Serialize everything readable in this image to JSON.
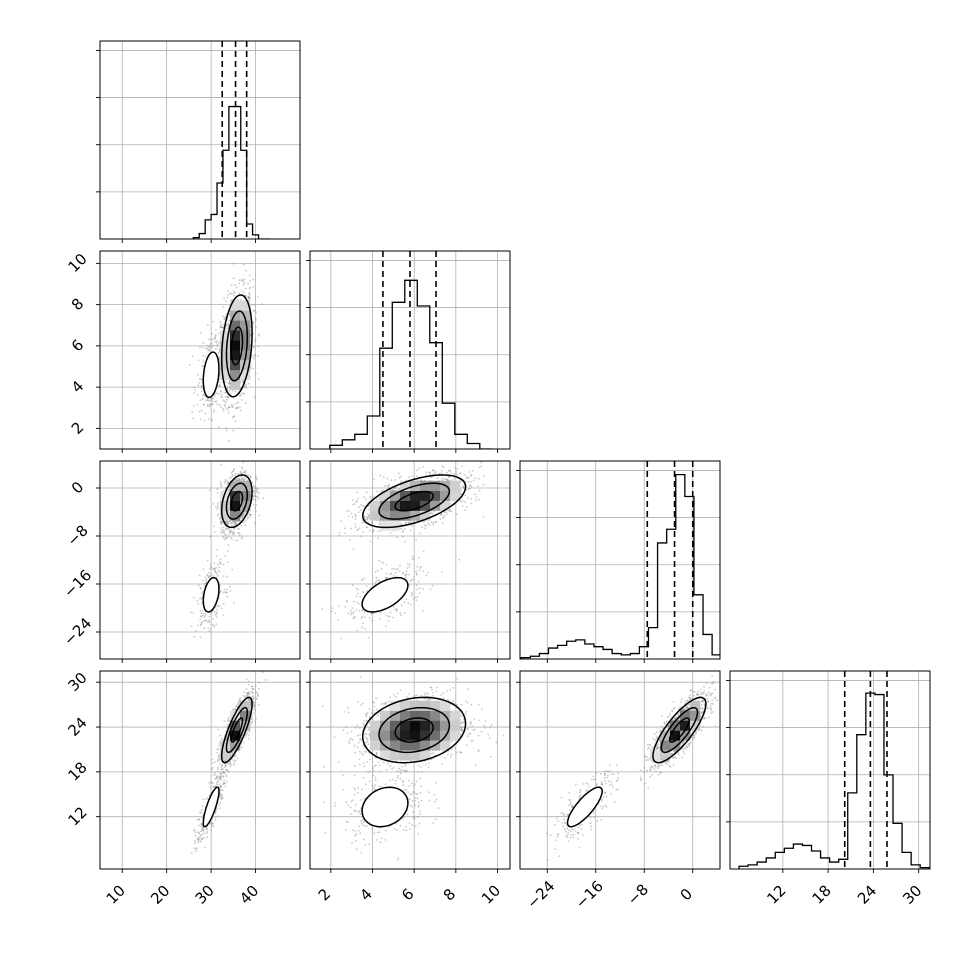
{
  "chart_data": {
    "type": "corner",
    "title": "",
    "parameters": [
      {
        "name": "",
        "xlim": [
          5,
          50
        ],
        "ticks": [
          10,
          20,
          30,
          40
        ],
        "tick_labels": [
          "10",
          "20",
          "30",
          "40"
        ],
        "quantiles": [
          32.5,
          35.5,
          38.0
        ],
        "histogram": {
          "bin_edges": [
            26,
            27.33,
            28.67,
            30,
            31.33,
            32.67,
            34,
            35.33,
            36.67,
            38,
            39.33,
            40.67,
            42,
            43.33
          ],
          "counts": [
            1,
            4,
            14,
            18,
            41,
            65,
            97,
            97,
            65,
            11,
            3,
            0,
            0
          ]
        }
      },
      {
        "name": "",
        "xlim": [
          1,
          10.6
        ],
        "ticks": [
          2,
          4,
          6,
          8,
          10
        ],
        "tick_labels": [
          "2",
          "4",
          "6",
          "8",
          "10"
        ],
        "quantiles": [
          4.5,
          5.8,
          7.05
        ],
        "histogram": {
          "bin_edges": [
            1.95,
            2.55,
            3.15,
            3.75,
            4.35,
            4.95,
            5.55,
            6.15,
            6.75,
            7.35,
            7.95,
            8.55,
            9.15,
            9.75
          ],
          "counts": [
            2,
            5,
            8,
            18,
            55,
            80,
            92,
            78,
            58,
            25,
            8,
            3,
            0
          ]
        }
      },
      {
        "name": "",
        "xlim": [
          -28.5,
          4.5
        ],
        "ticks": [
          -24,
          -16,
          -8,
          0
        ],
        "tick_labels": [
          "−24",
          "−16",
          "−8",
          "0"
        ],
        "quantiles": [
          -7.5,
          -3.0,
          0.0
        ],
        "histogram": {
          "bin_edges": [
            -28.3,
            -26.8,
            -25.3,
            -23.8,
            -22.3,
            -20.8,
            -19.3,
            -17.8,
            -16.3,
            -14.8,
            -13.3,
            -11.8,
            -10.3,
            -8.8,
            -7.3,
            -5.8,
            -4.3,
            -2.8,
            -1.3,
            0.2,
            1.7,
            3.2,
            4.7
          ],
          "counts": [
            1,
            2,
            4,
            8,
            10,
            13,
            14,
            11,
            9,
            7,
            4,
            3,
            4,
            9,
            23,
            85,
            95,
            135,
            119,
            47,
            18,
            3
          ]
        }
      },
      {
        "name": "",
        "xlim": [
          5,
          31.5
        ],
        "ticks": [
          12,
          18,
          24,
          30
        ],
        "tick_labels": [
          "12",
          "18",
          "24",
          "30"
        ],
        "quantiles": [
          20.2,
          23.6,
          25.8
        ],
        "histogram": {
          "bin_edges": [
            6.2,
            7.4,
            8.6,
            9.8,
            11.0,
            12.2,
            13.4,
            14.6,
            15.8,
            17.0,
            18.2,
            19.4,
            20.6,
            21.8,
            23.0,
            24.2,
            25.4,
            26.6,
            27.8,
            29.0,
            30.2,
            31.4
          ],
          "counts": [
            2,
            3,
            5,
            8,
            12,
            15,
            18,
            17,
            13,
            8,
            5,
            7,
            55,
            97,
            127,
            126,
            68,
            33,
            12,
            3,
            1
          ]
        }
      }
    ],
    "panel_y_ranges": [
      [
        0,
        145
      ],
      [
        0,
        108
      ],
      [
        0,
        145
      ],
      [
        0,
        143
      ]
    ],
    "row_ylims": [
      null,
      [
        1,
        10.6
      ],
      [
        -28.5,
        4.5
      ],
      [
        5,
        31.5
      ]
    ],
    "row_yticks": [
      null,
      {
        "ticks": [
          2,
          4,
          6,
          8,
          10
        ],
        "labels": [
          "2",
          "4",
          "6",
          "8",
          "10"
        ]
      },
      {
        "ticks": [
          -24,
          -16,
          -8,
          0
        ],
        "labels": [
          "−24",
          "−16",
          "−8",
          "0"
        ]
      },
      {
        "ticks": [
          12,
          18,
          24,
          30
        ],
        "labels": [
          "12",
          "18",
          "24",
          "30"
        ]
      }
    ],
    "clusters": [
      {
        "mean": [
          35.8,
          6.0,
          -2.2,
          23.6
        ],
        "sd": [
          1.8,
          1.3,
          2.3,
          2.3
        ],
        "weight": 0.82
      },
      {
        "mean": [
          30.0,
          4.6,
          -17.8,
          13.3
        ],
        "sd": [
          1.6,
          1.0,
          2.6,
          2.4
        ],
        "weight": 0.18
      }
    ],
    "grid": true,
    "histogram_quantile_style": "dashed",
    "contour_levels": 3,
    "legend": "none"
  }
}
